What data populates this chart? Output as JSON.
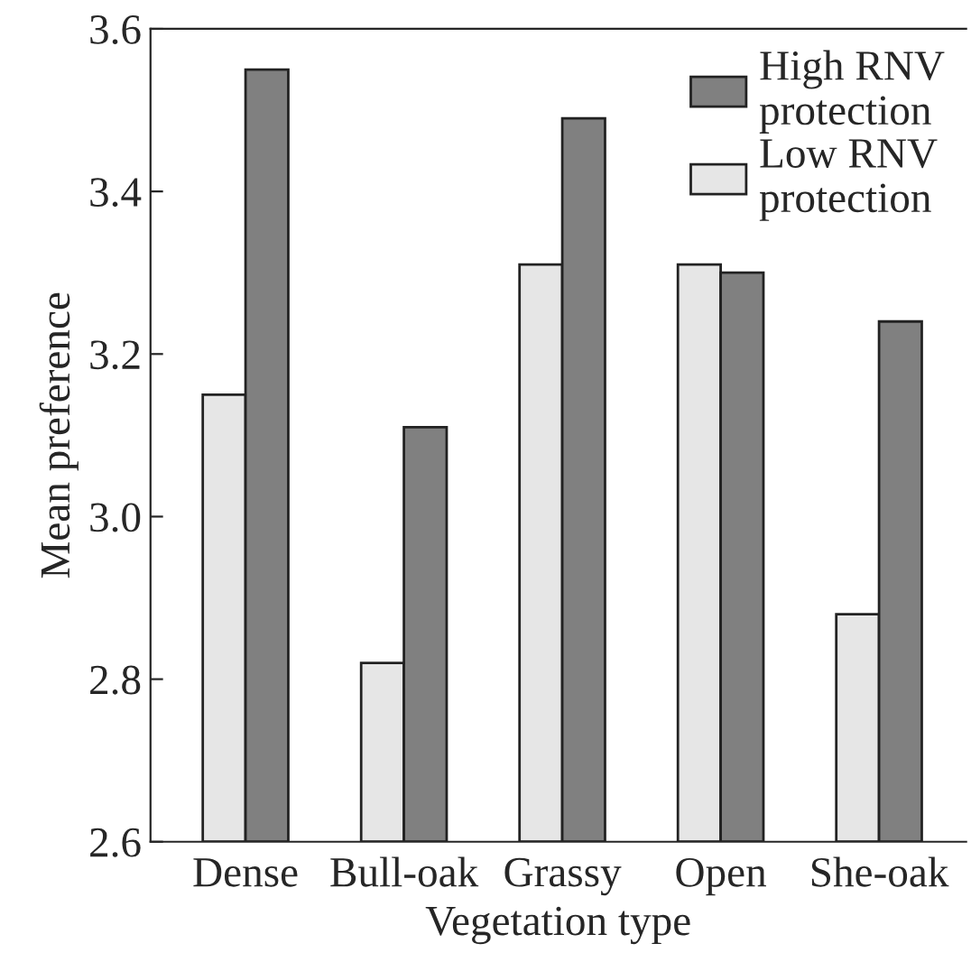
{
  "chart_data": {
    "type": "bar",
    "xlabel": "Vegetation type",
    "ylabel": "Mean preference",
    "categories": [
      "Dense",
      "Bull-oak",
      "Grassy",
      "Open",
      "She-oak"
    ],
    "series": [
      {
        "name": "Low RNV protection",
        "color": "#e6e6e6",
        "values": [
          3.15,
          2.82,
          3.31,
          3.31,
          2.88
        ]
      },
      {
        "name": "High RNV protection",
        "color": "#808080",
        "values": [
          3.55,
          3.11,
          3.49,
          3.3,
          3.24
        ]
      }
    ],
    "ylim": [
      2.6,
      3.6
    ],
    "yticks": [
      2.6,
      2.8,
      {
        "value": 3,
        "label": "3.0"
      },
      3.2,
      3.4,
      3.6
    ],
    "grid": false,
    "legend": "top right"
  }
}
